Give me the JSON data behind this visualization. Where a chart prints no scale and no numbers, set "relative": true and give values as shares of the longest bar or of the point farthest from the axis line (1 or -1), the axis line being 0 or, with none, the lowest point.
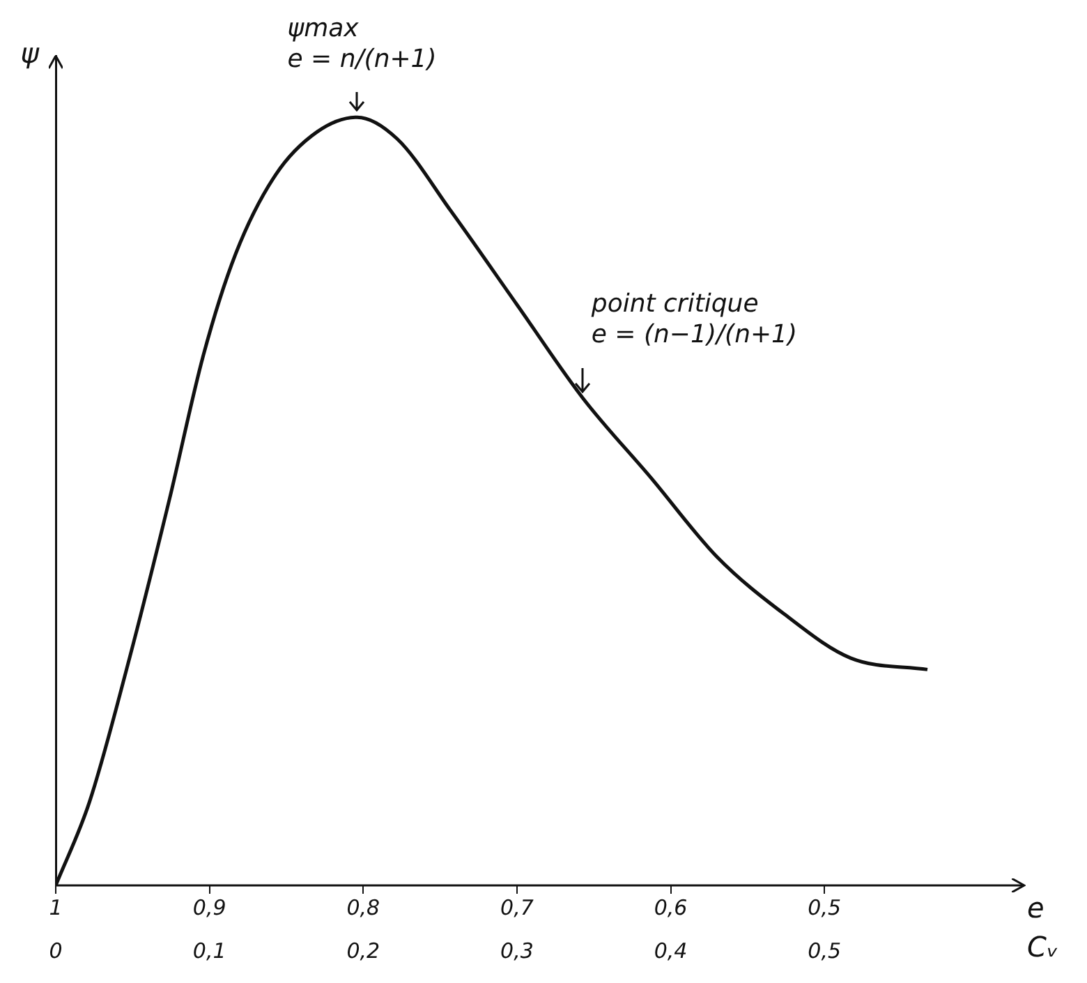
{
  "chart_data": {
    "type": "line",
    "relative": true,
    "ylabel": "ψ",
    "xlabel": "Cᵥ",
    "x2label": "e",
    "x": [
      0,
      0.022,
      0.048,
      0.074,
      0.096,
      0.117,
      0.143,
      0.17,
      0.196,
      0.222,
      0.257,
      0.3,
      0.343,
      0.387,
      0.43,
      0.474,
      0.517,
      0.567
    ],
    "series": [
      {
        "color": "#111111",
        "values": [
          0,
          0.109,
          0.296,
          0.503,
          0.69,
          0.822,
          0.925,
          0.981,
          1,
          0.972,
          0.878,
          0.756,
          0.634,
          0.531,
          0.428,
          0.353,
          0.296,
          0.281
        ]
      }
    ],
    "xlim": [
      0,
      0.63
    ],
    "xticks": [
      0,
      {
        "value": 0.1,
        "label": "0,1"
      },
      {
        "value": 0.2,
        "label": "0,2"
      },
      {
        "value": 0.3,
        "label": "0,3"
      },
      {
        "value": 0.4,
        "label": "0,4"
      },
      {
        "value": 0.5,
        "label": "0,5"
      }
    ],
    "x2lim": [
      1,
      0.37
    ],
    "x2ticks": [
      1,
      {
        "value": 0.9,
        "label": "0,9"
      },
      {
        "value": 0.8,
        "label": "0,8"
      },
      {
        "value": 0.7,
        "label": "0,7"
      },
      {
        "value": 0.6,
        "label": "0,6"
      },
      {
        "value": 0.5,
        "label": "0,5"
      }
    ],
    "annotations": [
      {
        "text": "ψmax\ne = n/(n+1)",
        "x": 0.196,
        "y": 1
      },
      {
        "text": "point critique\ne = (n−1)/(n+1)",
        "x": 0.343,
        "y": 0.634
      }
    ],
    "grid": false,
    "legend": false,
    "marker": "none",
    "line_style": "solid"
  }
}
